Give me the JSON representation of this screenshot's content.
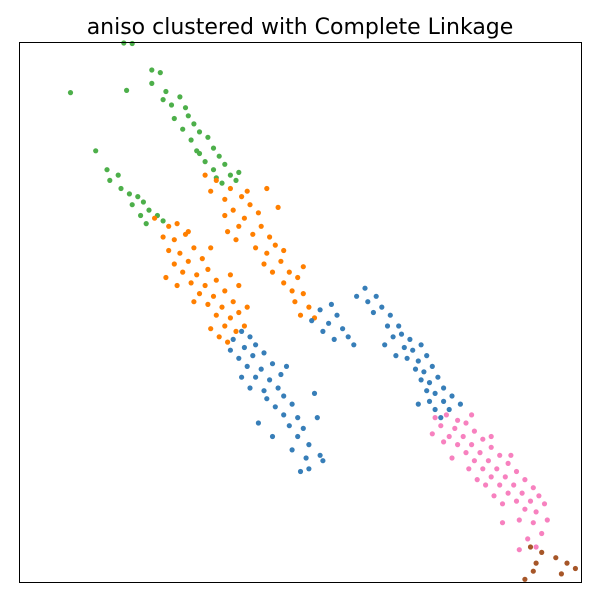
{
  "chart_data": {
    "type": "scatter",
    "title": "aniso clustered with Complete Linkage",
    "xlabel": "",
    "ylabel": "",
    "x_ticks": false,
    "y_ticks": false,
    "xlim": [
      0,
      100
    ],
    "ylim": [
      0,
      100
    ],
    "grid": false,
    "legend": "none",
    "clusters": [
      {
        "color": "#4daf4a",
        "points": [
          [
            18.5,
            100.0
          ],
          [
            20.0,
            99.9
          ],
          [
            23.5,
            95.0
          ],
          [
            25.0,
            94.5
          ],
          [
            23.5,
            92.5
          ],
          [
            9.0,
            90.8
          ],
          [
            19.0,
            91.2
          ],
          [
            26.0,
            91.0
          ],
          [
            28.5,
            90.0
          ],
          [
            25.5,
            89.5
          ],
          [
            27.0,
            88.5
          ],
          [
            29.5,
            88.0
          ],
          [
            30.0,
            86.5
          ],
          [
            27.5,
            86.0
          ],
          [
            31.0,
            85.0
          ],
          [
            29.0,
            84.0
          ],
          [
            32.0,
            83.5
          ],
          [
            30.5,
            82.0
          ],
          [
            33.5,
            82.5
          ],
          [
            34.5,
            80.5
          ],
          [
            31.5,
            80.0
          ],
          [
            35.5,
            79.0
          ],
          [
            33.0,
            78.0
          ],
          [
            36.5,
            77.5
          ],
          [
            34.5,
            76.5
          ],
          [
            37.5,
            75.5
          ],
          [
            38.5,
            74.5
          ],
          [
            36.0,
            74.0
          ],
          [
            32.0,
            79.5
          ],
          [
            35.0,
            75.0
          ],
          [
            39.0,
            76.0
          ],
          [
            13.5,
            80.0
          ],
          [
            15.5,
            76.5
          ],
          [
            16.0,
            74.5
          ],
          [
            17.5,
            75.5
          ],
          [
            18.0,
            73.0
          ],
          [
            19.5,
            72.0
          ],
          [
            21.0,
            71.5
          ],
          [
            20.0,
            70.0
          ],
          [
            22.0,
            70.5
          ],
          [
            23.0,
            69.0
          ],
          [
            21.5,
            68.0
          ],
          [
            24.5,
            68.0
          ],
          [
            25.5,
            67.0
          ],
          [
            22.5,
            66.5
          ]
        ]
      },
      {
        "color": "#ff7f00",
        "points": [
          [
            33.0,
            75.5
          ],
          [
            35.0,
            74.5
          ],
          [
            37.5,
            73.0
          ],
          [
            34.0,
            72.5
          ],
          [
            36.5,
            71.0
          ],
          [
            39.5,
            71.5
          ],
          [
            38.0,
            69.0
          ],
          [
            41.0,
            70.0
          ],
          [
            36.5,
            68.0
          ],
          [
            40.0,
            67.5
          ],
          [
            42.5,
            68.5
          ],
          [
            39.0,
            66.0
          ],
          [
            43.0,
            66.0
          ],
          [
            41.5,
            64.5
          ],
          [
            44.5,
            64.0
          ],
          [
            38.5,
            63.5
          ],
          [
            42.0,
            62.0
          ],
          [
            45.5,
            62.5
          ],
          [
            44.0,
            61.0
          ],
          [
            47.0,
            61.5
          ],
          [
            43.5,
            59.0
          ],
          [
            46.5,
            59.5
          ],
          [
            45.0,
            57.5
          ],
          [
            48.0,
            57.5
          ],
          [
            47.0,
            55.5
          ],
          [
            49.5,
            56.5
          ],
          [
            48.5,
            54.0
          ],
          [
            50.5,
            53.5
          ],
          [
            49.0,
            52.0
          ],
          [
            51.5,
            51.0
          ],
          [
            50.0,
            49.5
          ],
          [
            52.5,
            49.0
          ],
          [
            44.0,
            73.0
          ],
          [
            46.0,
            69.5
          ],
          [
            40.5,
            72.5
          ],
          [
            37.0,
            65.0
          ],
          [
            50.5,
            58.5
          ],
          [
            24.0,
            67.5
          ],
          [
            26.5,
            66.0
          ],
          [
            28.0,
            66.5
          ],
          [
            25.5,
            64.0
          ],
          [
            27.5,
            63.5
          ],
          [
            29.5,
            64.5
          ],
          [
            26.5,
            61.5
          ],
          [
            28.5,
            61.0
          ],
          [
            31.0,
            62.0
          ],
          [
            30.0,
            59.5
          ],
          [
            27.5,
            59.0
          ],
          [
            32.5,
            60.0
          ],
          [
            29.0,
            57.5
          ],
          [
            31.5,
            57.0
          ],
          [
            33.5,
            58.0
          ],
          [
            30.5,
            55.5
          ],
          [
            33.0,
            55.0
          ],
          [
            35.0,
            56.0
          ],
          [
            32.0,
            53.5
          ],
          [
            34.5,
            53.0
          ],
          [
            36.5,
            54.0
          ],
          [
            33.5,
            51.5
          ],
          [
            36.0,
            51.0
          ],
          [
            38.0,
            52.0
          ],
          [
            35.0,
            49.5
          ],
          [
            37.5,
            49.0
          ],
          [
            39.0,
            50.0
          ],
          [
            36.5,
            47.5
          ],
          [
            38.5,
            46.5
          ],
          [
            35.5,
            45.5
          ],
          [
            37.0,
            44.5
          ],
          [
            40.0,
            47.5
          ],
          [
            40.5,
            51.0
          ],
          [
            26.0,
            56.5
          ],
          [
            28.0,
            55.0
          ],
          [
            31.0,
            52.0
          ],
          [
            34.0,
            47.0
          ],
          [
            39.0,
            55.0
          ],
          [
            37.5,
            57.0
          ],
          [
            30.0,
            65.0
          ],
          [
            34.0,
            62.0
          ]
        ]
      },
      {
        "color": "#377eb8",
        "points": [
          [
            38.0,
            45.0
          ],
          [
            39.5,
            46.5
          ],
          [
            41.0,
            45.5
          ],
          [
            37.5,
            43.0
          ],
          [
            40.0,
            43.5
          ],
          [
            42.0,
            44.0
          ],
          [
            39.0,
            41.5
          ],
          [
            41.5,
            42.0
          ],
          [
            43.5,
            42.5
          ],
          [
            40.5,
            40.0
          ],
          [
            43.0,
            39.5
          ],
          [
            45.0,
            40.5
          ],
          [
            42.0,
            38.0
          ],
          [
            44.5,
            37.5
          ],
          [
            46.5,
            38.5
          ],
          [
            41.0,
            36.0
          ],
          [
            43.5,
            35.5
          ],
          [
            46.0,
            36.0
          ],
          [
            44.0,
            34.0
          ],
          [
            47.0,
            34.5
          ],
          [
            45.5,
            32.5
          ],
          [
            48.5,
            33.0
          ],
          [
            47.0,
            31.0
          ],
          [
            49.5,
            30.5
          ],
          [
            48.0,
            29.0
          ],
          [
            50.5,
            28.5
          ],
          [
            49.5,
            27.0
          ],
          [
            51.5,
            25.5
          ],
          [
            48.5,
            24.5
          ],
          [
            51.0,
            23.0
          ],
          [
            53.5,
            23.5
          ],
          [
            51.5,
            21.0
          ],
          [
            50.0,
            20.5
          ],
          [
            54.0,
            22.5
          ],
          [
            52.5,
            35.0
          ],
          [
            47.5,
            40.0
          ],
          [
            39.5,
            38.0
          ],
          [
            45.0,
            27.0
          ],
          [
            42.5,
            29.5
          ],
          [
            53.0,
            30.5
          ],
          [
            52.0,
            48.5
          ],
          [
            53.5,
            50.5
          ],
          [
            55.0,
            48.0
          ],
          [
            56.5,
            49.5
          ],
          [
            54.0,
            46.5
          ],
          [
            57.5,
            47.0
          ],
          [
            58.5,
            45.5
          ],
          [
            56.0,
            45.0
          ],
          [
            55.5,
            51.5
          ],
          [
            59.5,
            44.0
          ],
          [
            60.0,
            53.0
          ],
          [
            61.5,
            54.5
          ],
          [
            62.0,
            52.0
          ],
          [
            63.5,
            53.0
          ],
          [
            64.5,
            51.0
          ],
          [
            63.0,
            50.0
          ],
          [
            66.0,
            49.5
          ],
          [
            65.5,
            47.5
          ],
          [
            67.5,
            47.5
          ],
          [
            66.5,
            45.5
          ],
          [
            68.0,
            46.0
          ],
          [
            69.5,
            45.0
          ],
          [
            68.5,
            43.5
          ],
          [
            70.0,
            43.0
          ],
          [
            71.5,
            44.0
          ],
          [
            69.0,
            41.5
          ],
          [
            71.0,
            41.0
          ],
          [
            72.5,
            42.0
          ],
          [
            70.5,
            39.5
          ],
          [
            72.0,
            39.0
          ],
          [
            73.5,
            40.0
          ],
          [
            71.5,
            37.5
          ],
          [
            73.0,
            37.0
          ],
          [
            74.5,
            38.0
          ],
          [
            72.5,
            35.5
          ],
          [
            74.0,
            35.0
          ],
          [
            75.5,
            36.0
          ],
          [
            73.0,
            33.5
          ],
          [
            75.5,
            33.5
          ],
          [
            77.0,
            34.5
          ],
          [
            74.0,
            32.0
          ],
          [
            76.5,
            32.0
          ],
          [
            78.5,
            33.0
          ],
          [
            71.0,
            33.0
          ],
          [
            67.0,
            42.0
          ],
          [
            65.0,
            44.0
          ],
          [
            75.0,
            30.5
          ]
        ]
      },
      {
        "color": "#f781bf",
        "points": [
          [
            74.0,
            30.5
          ],
          [
            76.0,
            31.0
          ],
          [
            78.0,
            30.0
          ],
          [
            75.0,
            29.0
          ],
          [
            77.5,
            28.5
          ],
          [
            79.5,
            29.5
          ],
          [
            76.5,
            27.0
          ],
          [
            79.0,
            27.0
          ],
          [
            81.0,
            28.0
          ],
          [
            78.0,
            25.5
          ],
          [
            80.5,
            25.5
          ],
          [
            82.5,
            26.5
          ],
          [
            79.5,
            24.0
          ],
          [
            82.0,
            24.0
          ],
          [
            84.0,
            25.0
          ],
          [
            81.0,
            22.5
          ],
          [
            83.5,
            22.5
          ],
          [
            85.5,
            23.5
          ],
          [
            82.5,
            21.0
          ],
          [
            85.0,
            21.0
          ],
          [
            87.0,
            22.0
          ],
          [
            84.0,
            19.5
          ],
          [
            86.5,
            19.5
          ],
          [
            88.5,
            20.5
          ],
          [
            85.5,
            18.0
          ],
          [
            88.0,
            18.0
          ],
          [
            90.0,
            19.0
          ],
          [
            87.0,
            16.5
          ],
          [
            89.5,
            16.5
          ],
          [
            91.5,
            17.5
          ],
          [
            88.5,
            15.0
          ],
          [
            91.0,
            15.0
          ],
          [
            92.5,
            16.0
          ],
          [
            90.0,
            13.5
          ],
          [
            92.0,
            13.0
          ],
          [
            93.5,
            14.5
          ],
          [
            89.0,
            11.5
          ],
          [
            91.5,
            11.0
          ],
          [
            94.0,
            11.5
          ],
          [
            86.0,
            11.0
          ],
          [
            93.0,
            9.0
          ],
          [
            90.5,
            8.0
          ],
          [
            92.0,
            6.5
          ],
          [
            89.0,
            6.0
          ],
          [
            77.0,
            23.0
          ],
          [
            75.5,
            26.0
          ],
          [
            80.0,
            21.0
          ],
          [
            83.0,
            18.0
          ],
          [
            86.0,
            14.5
          ],
          [
            84.5,
            16.0
          ],
          [
            81.5,
            19.0
          ],
          [
            73.5,
            27.5
          ],
          [
            80.5,
            31.0
          ],
          [
            87.5,
            23.5
          ],
          [
            84.0,
            27.0
          ]
        ]
      },
      {
        "color": "#a65628",
        "points": [
          [
            91.0,
            6.5
          ],
          [
            93.0,
            5.5
          ],
          [
            92.0,
            3.5
          ],
          [
            95.5,
            4.5
          ],
          [
            97.5,
            3.5
          ],
          [
            99.0,
            2.5
          ],
          [
            91.5,
            2.0
          ],
          [
            90.0,
            0.5
          ],
          [
            96.5,
            1.5
          ]
        ]
      }
    ]
  }
}
